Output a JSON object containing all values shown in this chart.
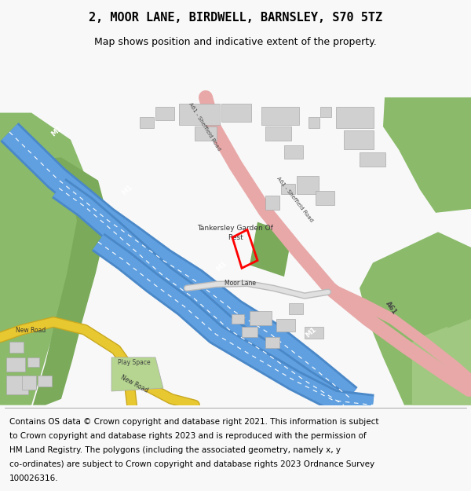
{
  "title": "2, MOOR LANE, BIRDWELL, BARNSLEY, S70 5TZ",
  "subtitle": "Map shows position and indicative extent of the property.",
  "footer_lines": [
    "Contains OS data © Crown copyright and database right 2021. This information is subject",
    "to Crown copyright and database rights 2023 and is reproduced with the permission of",
    "HM Land Registry. The polygons (including the associated geometry, namely x, y",
    "co-ordinates) are subject to Crown copyright and database rights 2023 Ordnance Survey",
    "100026316."
  ],
  "bg_color": "#f8f8f8",
  "map_bg": "#ffffff",
  "title_fontsize": 11,
  "subtitle_fontsize": 9,
  "footer_fontsize": 7.5,
  "green_dark": "#7aaa5a",
  "green_mid": "#8aba6a",
  "green_light": "#a0c880",
  "blue_dark": "#4a88c8",
  "blue_mid": "#60a0e0",
  "pink_road": "#e8a8a8",
  "yellow_road": "#e8c830",
  "grey_road": "#cccccc",
  "building_fill": "#d0d0d0",
  "building_edge": "#aaaaaa"
}
